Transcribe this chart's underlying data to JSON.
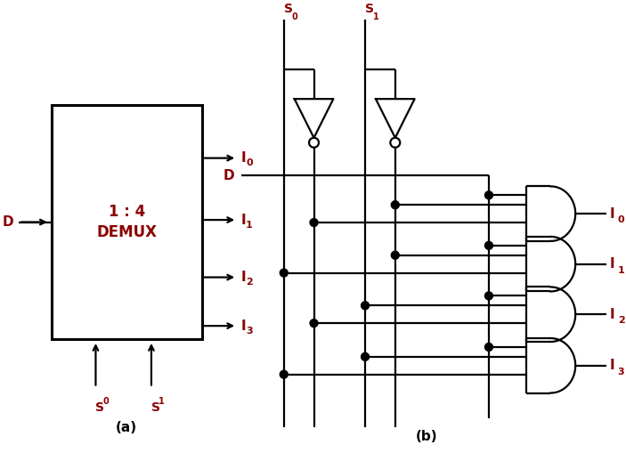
{
  "title_a": "(a)",
  "title_b": "(b)",
  "label_color": "#8B0000",
  "line_color": "#000000",
  "bg_color": "#ffffff",
  "box_label_line1": "1 : 4",
  "box_label_line2": "DEMUX",
  "input_label": "D",
  "output_labels": [
    "I",
    "I",
    "I",
    "I"
  ],
  "output_subs": [
    "0",
    "1",
    "2",
    "3"
  ],
  "select_labels": [
    "S",
    "S"
  ],
  "select_subs": [
    "0",
    "1"
  ],
  "figsize": [
    7.03,
    5.09
  ],
  "dpi": 100,
  "lw": 1.6
}
